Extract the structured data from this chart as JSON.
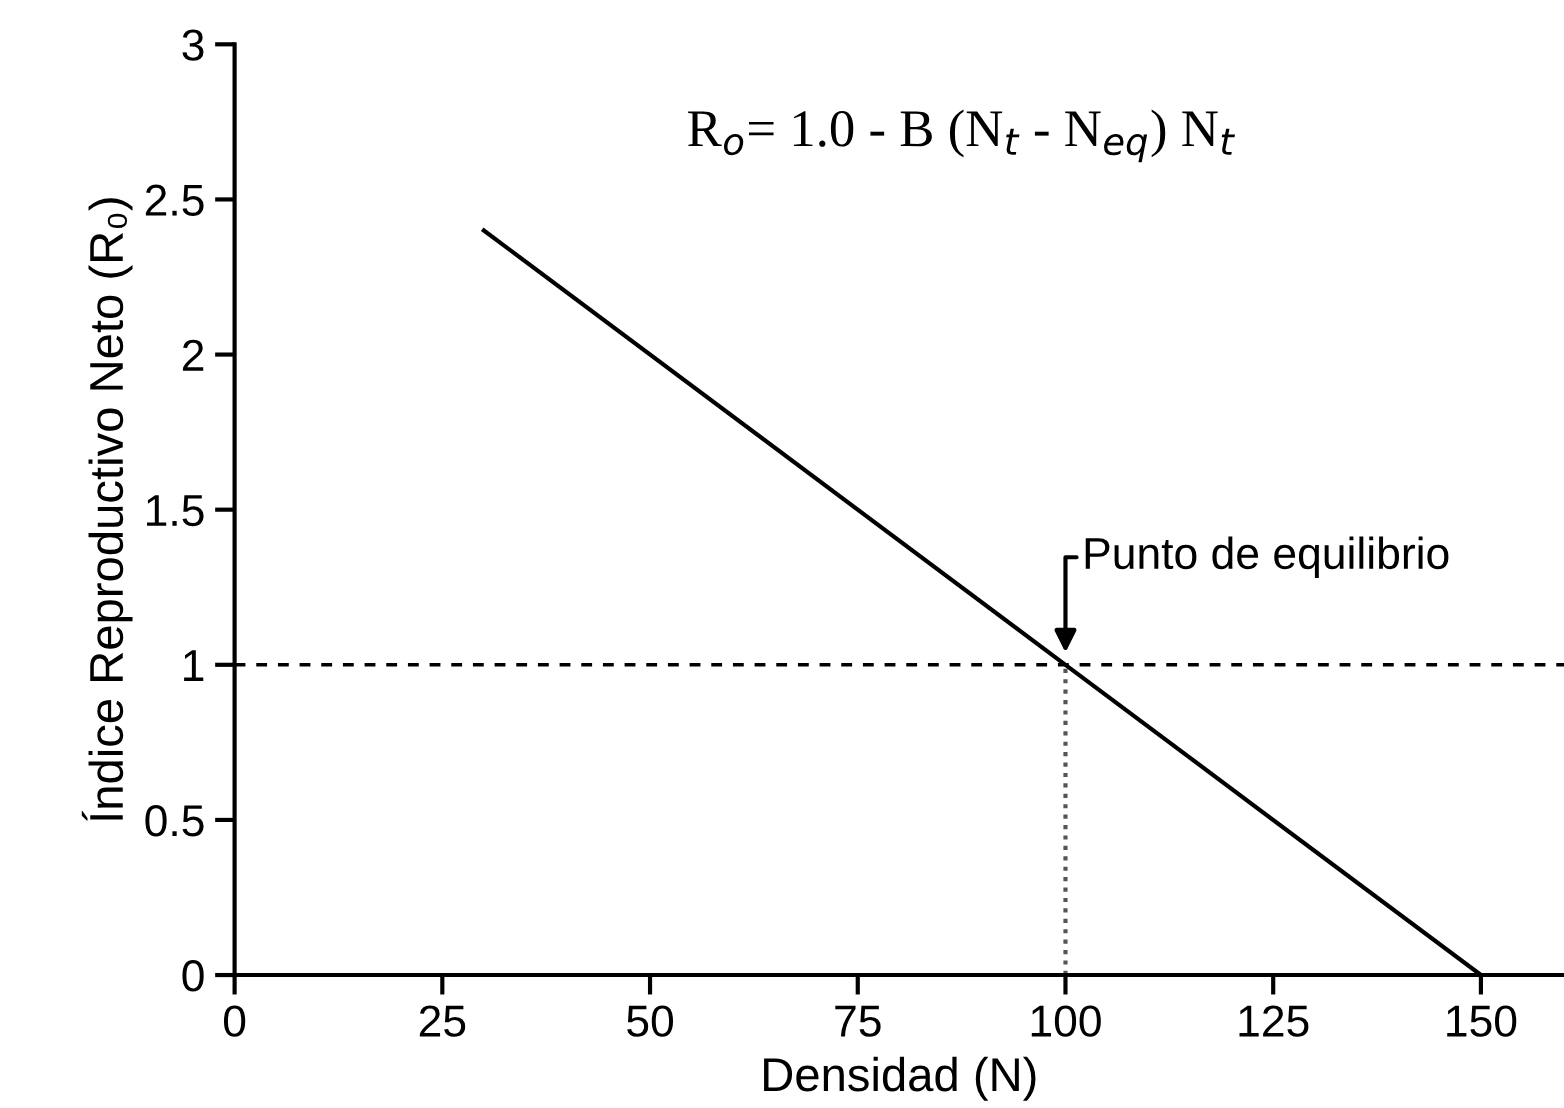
{
  "chart_data": {
    "type": "line",
    "xlabel": "Densidad (N)",
    "ylabel": "Índice Reproductivo Neto (R₀)",
    "xlim": [
      0,
      160
    ],
    "ylim": [
      0,
      3
    ],
    "xticks": [
      0,
      25,
      50,
      75,
      100,
      125,
      150
    ],
    "yticks": [
      0,
      0.5,
      1,
      1.5,
      2,
      2.5,
      3
    ],
    "grid": false,
    "legend": false,
    "marker": "none",
    "series": [
      {
        "x": [
          30,
          100,
          150
        ],
        "values": [
          2.4,
          1,
          0
        ],
        "color": "#000000",
        "line_style": "solid"
      },
      {
        "x": [
          100,
          100
        ],
        "values": [
          0,
          1
        ],
        "color": "#555555",
        "line_style": "dotted"
      }
    ],
    "ref_lines": [
      {
        "axis": "y",
        "value": 1,
        "label": null,
        "color": "#000000",
        "line_style": "dashed"
      }
    ],
    "annotations": [
      {
        "text": "Punto de equilibrio",
        "x": 100,
        "y": 1
      },
      "R$_{o}$= 1.0 - B (N$_{t}$ - N$_{eq}$) N$_{t}$"
    ]
  }
}
